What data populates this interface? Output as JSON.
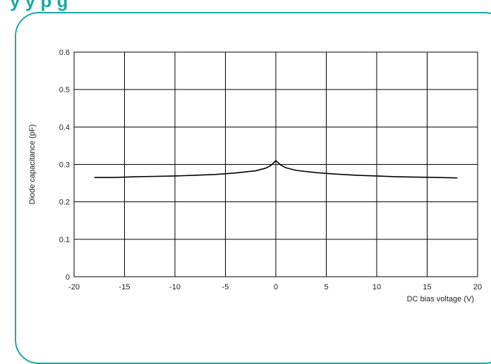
{
  "header": {
    "title_fragment": "y          y                         p                                          g"
  },
  "colors": {
    "accent": "#1aaa9e",
    "grid": "#000000",
    "line": "#000000"
  },
  "chart_data": {
    "type": "line",
    "title": "",
    "xlabel": "DC bias voltage (V)",
    "ylabel": "Diode capacitance (pF)",
    "xlim": [
      -20,
      20
    ],
    "ylim": [
      0,
      0.6
    ],
    "xticks": [
      -20,
      -15,
      -10,
      -5,
      0,
      5,
      10,
      15,
      20
    ],
    "yticks": [
      0,
      0.1,
      0.2,
      0.3,
      0.4,
      0.5,
      0.6
    ],
    "xtick_labels": [
      "-20",
      "-15",
      "-10",
      "-5",
      "0",
      "5",
      "10",
      "15",
      "20"
    ],
    "ytick_labels": [
      "0",
      "0.1",
      "0.2",
      "0.3",
      "0.4",
      "0.5",
      "0.6"
    ],
    "grid": true,
    "series": [
      {
        "x": [
          -18,
          -16,
          -14,
          -12,
          -10,
          -8,
          -6,
          -4,
          -2,
          -1,
          -0.5,
          0,
          0.5,
          1,
          2,
          4,
          6,
          8,
          10,
          12,
          14,
          16,
          18
        ],
        "y": [
          0.265,
          0.265,
          0.267,
          0.268,
          0.269,
          0.271,
          0.273,
          0.277,
          0.283,
          0.29,
          0.297,
          0.31,
          0.298,
          0.291,
          0.284,
          0.278,
          0.274,
          0.271,
          0.269,
          0.267,
          0.266,
          0.265,
          0.264
        ]
      }
    ]
  }
}
